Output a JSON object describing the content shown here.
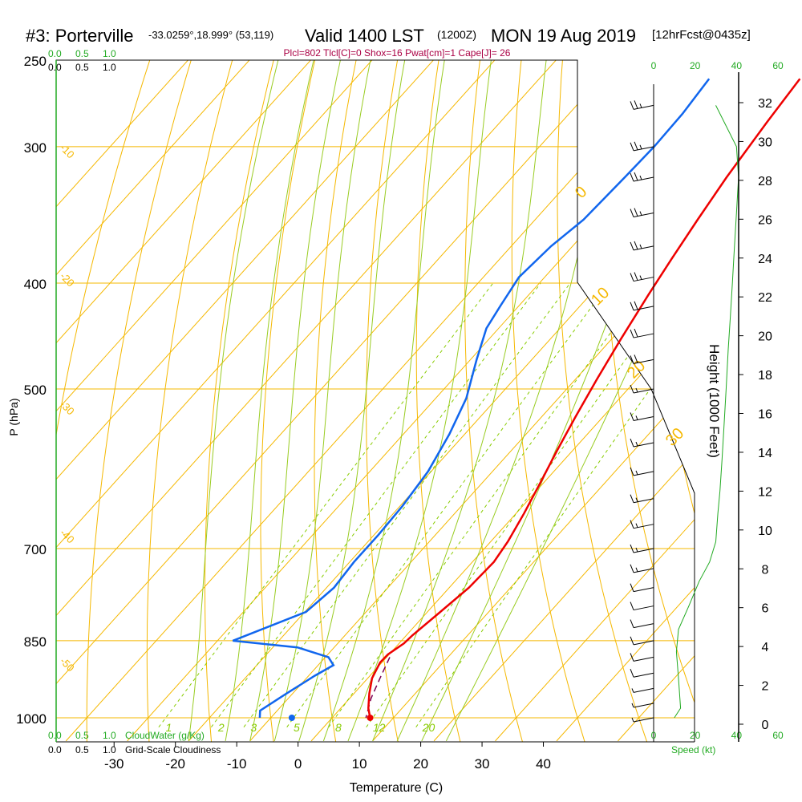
{
  "header": {
    "station": "#3: Porterville",
    "coords": "-33.0259°,18.999° (53,119)",
    "valid": "Valid 1400 LST",
    "utc": "(1200Z)",
    "date": "MON 19 Aug 2019",
    "forecast": "[12hrFcst@0435z]",
    "indices": "Plcl=802 Tlcl[C]=0 Shox=16 Pwat[cm]=1 Cape[J]= 26"
  },
  "colors": {
    "temperature": "#ee0000",
    "dewpoint": "#1166ee",
    "isotherm": "#f5b800",
    "dry_adiabat": "#99cc22",
    "mixing_ratio": "#88cc00",
    "parcel": "#7a0055",
    "speed": "#22aa22",
    "indices": "#aa0044"
  },
  "chart_data": {
    "type": "line",
    "xlabel": "Temperature (C)",
    "ylabel": "P (hPa)",
    "y2label": "Height (1000 Feet)",
    "xlim": [
      -35,
      50
    ],
    "ylim": [
      250,
      1050
    ],
    "x_ticks": [
      -30,
      -20,
      -10,
      0,
      10,
      20,
      30,
      40
    ],
    "pressure_ticks": [
      250,
      300,
      400,
      500,
      700,
      850,
      1000
    ],
    "height_ticks": [
      0,
      2,
      4,
      6,
      8,
      10,
      12,
      14,
      16,
      18,
      20,
      22,
      24,
      26,
      28,
      30,
      32
    ],
    "isotherm_labels": [
      {
        "text": "-10",
        "t": -10
      },
      {
        "text": "-20",
        "t": -20
      },
      {
        "text": "-30",
        "t": -30
      },
      {
        "text": "-40",
        "t": -40
      },
      {
        "text": "-50",
        "t": -50
      }
    ],
    "upper_temp_labels": [
      {
        "text": "0",
        "t": 0,
        "p": 335
      },
      {
        "text": "10",
        "t": 10,
        "p": 420
      },
      {
        "text": "20",
        "t": 20,
        "p": 490
      },
      {
        "text": "30",
        "t": 30,
        "p": 565
      }
    ],
    "mixing_ratio_labels": [
      "1",
      "2",
      "3",
      "5",
      "8",
      "12",
      "20"
    ],
    "mixing_ratios": [
      1,
      2,
      3,
      5,
      8,
      12,
      20
    ],
    "series": [
      {
        "name": "Temperature",
        "points": [
          [
            -7.5,
            260
          ],
          [
            -6.5,
            285
          ],
          [
            -5,
            320
          ],
          [
            -3.5,
            350
          ],
          [
            -2,
            380
          ],
          [
            -0.5,
            410
          ],
          [
            1.5,
            450
          ],
          [
            3.5,
            490
          ],
          [
            5.5,
            530
          ],
          [
            7.5,
            570
          ],
          [
            9.5,
            610
          ],
          [
            11.3,
            650
          ],
          [
            12.8,
            690
          ],
          [
            13.5,
            720
          ],
          [
            13.2,
            760
          ],
          [
            12.1,
            800
          ],
          [
            11,
            840
          ],
          [
            10.8,
            855
          ],
          [
            9.8,
            875
          ],
          [
            9.7,
            890
          ],
          [
            10.7,
            920
          ],
          [
            12.5,
            950
          ],
          [
            14.5,
            980
          ],
          [
            16.2,
            1000
          ]
        ]
      },
      {
        "name": "Dewpoint",
        "points": [
          [
            -22.3,
            260
          ],
          [
            -21.5,
            280
          ],
          [
            -21.3,
            300
          ],
          [
            -21.6,
            320
          ],
          [
            -22.1,
            350
          ],
          [
            -23.5,
            370
          ],
          [
            -24.2,
            395
          ],
          [
            -23,
            420
          ],
          [
            -22,
            440
          ],
          [
            -19,
            470
          ],
          [
            -15,
            510
          ],
          [
            -12.5,
            550
          ],
          [
            -10.5,
            595
          ],
          [
            -9.6,
            640
          ],
          [
            -9.3,
            680
          ],
          [
            -9.3,
            720
          ],
          [
            -8.8,
            760
          ],
          [
            -9.8,
            800
          ],
          [
            -17.5,
            850
          ],
          [
            -6,
            862
          ],
          [
            0.5,
            880
          ],
          [
            2.5,
            895
          ],
          [
            1,
            915
          ],
          [
            -1,
            950
          ],
          [
            -2.8,
            985
          ],
          [
            -1.8,
            1000
          ]
        ]
      },
      {
        "name": "Parcel",
        "points": [
          [
            10.5,
            880
          ],
          [
            12,
            920
          ],
          [
            13.5,
            960
          ],
          [
            15.5,
            1000
          ]
        ]
      }
    ],
    "surface_points": [
      {
        "name": "Surface temperature",
        "t": 16.2,
        "p": 1000
      },
      {
        "name": "Surface dewpoint",
        "t": -1.8,
        "p": 1000
      }
    ],
    "wind_barbs": [
      {
        "p": 275,
        "speed": 25
      },
      {
        "p": 300,
        "speed": 25
      },
      {
        "p": 320,
        "speed": 25
      },
      {
        "p": 345,
        "speed": 25
      },
      {
        "p": 370,
        "speed": 25
      },
      {
        "p": 395,
        "speed": 25
      },
      {
        "p": 420,
        "speed": 20
      },
      {
        "p": 445,
        "speed": 20
      },
      {
        "p": 470,
        "speed": 20
      },
      {
        "p": 500,
        "speed": 15
      },
      {
        "p": 530,
        "speed": 15
      },
      {
        "p": 560,
        "speed": 15
      },
      {
        "p": 595,
        "speed": 15
      },
      {
        "p": 630,
        "speed": 15
      },
      {
        "p": 665,
        "speed": 15
      },
      {
        "p": 700,
        "speed": 15
      },
      {
        "p": 730,
        "speed": 15
      },
      {
        "p": 760,
        "speed": 10
      },
      {
        "p": 790,
        "speed": 10
      },
      {
        "p": 820,
        "speed": 10
      },
      {
        "p": 850,
        "speed": 10
      },
      {
        "p": 880,
        "speed": 10
      },
      {
        "p": 910,
        "speed": 10
      },
      {
        "p": 940,
        "speed": 5
      },
      {
        "p": 970,
        "speed": 5
      },
      {
        "p": 1000,
        "speed": 5
      }
    ],
    "speed_profile": {
      "xlim": [
        0,
        60
      ],
      "ticks": [
        0,
        20,
        40,
        60
      ],
      "points": [
        [
          30,
          275
        ],
        [
          40,
          300
        ],
        [
          41,
          320
        ],
        [
          40,
          345
        ],
        [
          39,
          370
        ],
        [
          38,
          400
        ],
        [
          37,
          430
        ],
        [
          36,
          460
        ],
        [
          35,
          500
        ],
        [
          34,
          540
        ],
        [
          33,
          580
        ],
        [
          32,
          620
        ],
        [
          31,
          650
        ],
        [
          30,
          690
        ],
        [
          27,
          720
        ],
        [
          22,
          750
        ],
        [
          17,
          790
        ],
        [
          12,
          830
        ],
        [
          11,
          870
        ],
        [
          12,
          920
        ],
        [
          13,
          980
        ],
        [
          10,
          1000
        ]
      ]
    },
    "axis_labels": {
      "cloudwater": "CloudWater (g/Kg)",
      "cloudiness": "Grid-Scale Cloudiness",
      "speed": "Speed (kt)"
    },
    "small_scale_ticks": [
      "0.0",
      "0.5",
      "1.0"
    ]
  }
}
